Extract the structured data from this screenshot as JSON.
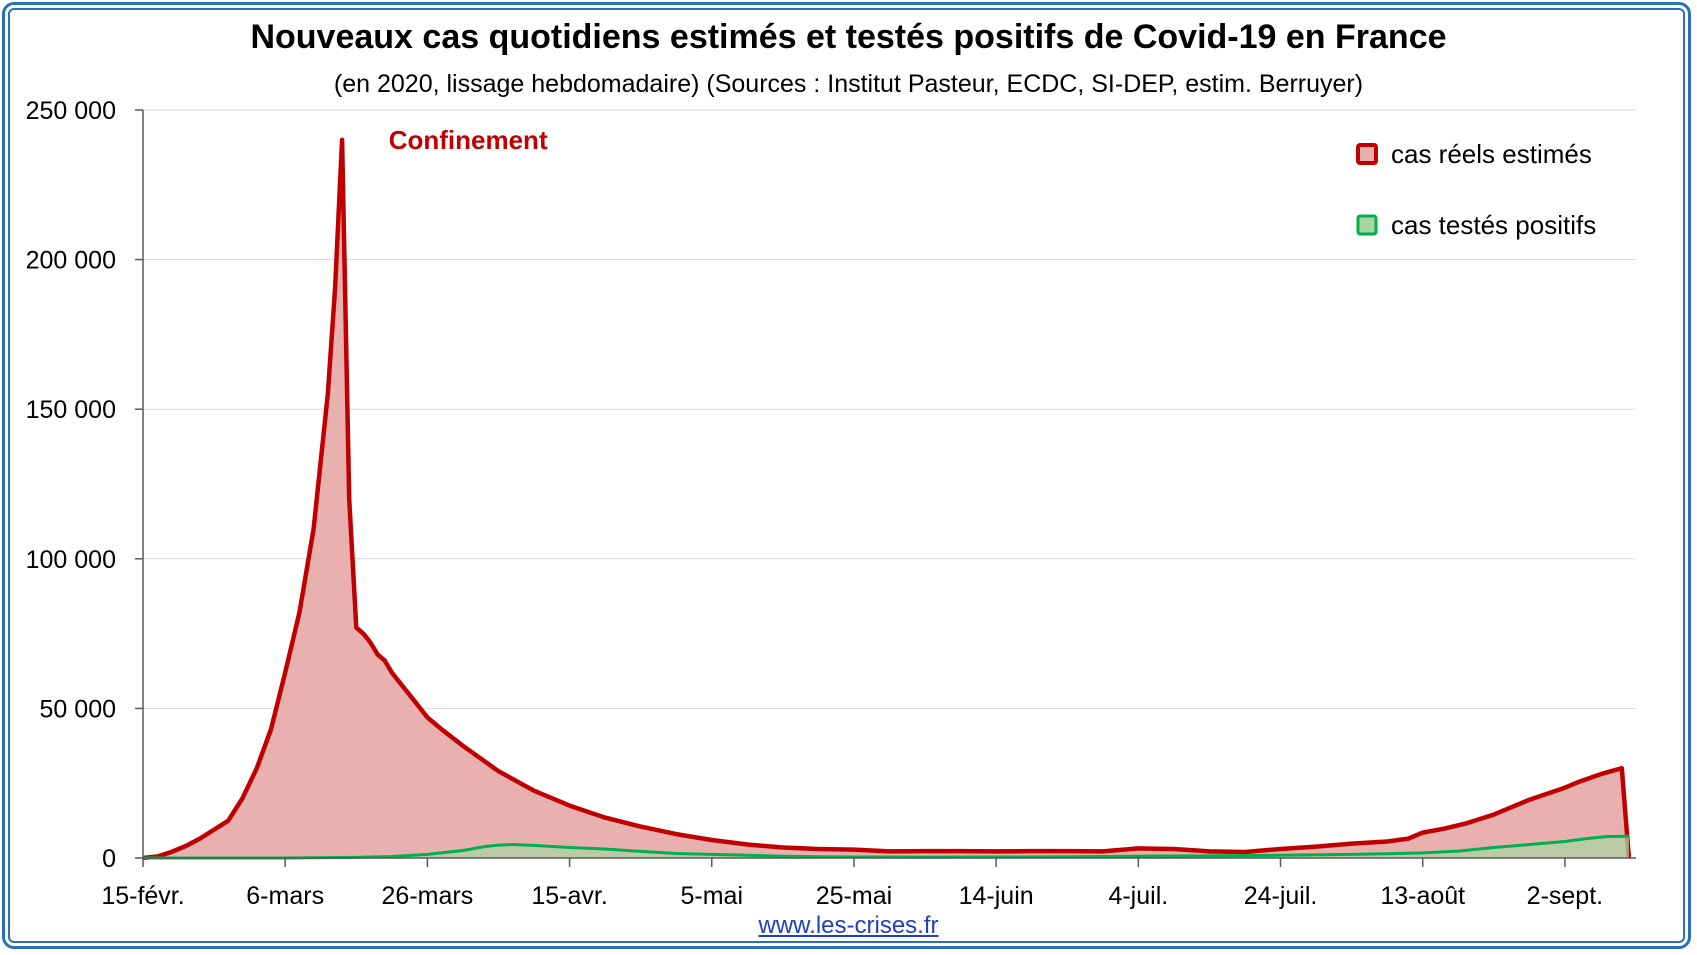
{
  "chart_data": {
    "type": "area",
    "title": "Nouveaux cas quotidiens estimés et testés positifs de Covid-19 en France",
    "subtitle": "(en 2020, lissage hebdomadaire) (Sources : Institut Pasteur, ECDC, SI-DEP, estim. Berruyer)",
    "x_start": "15-févr.",
    "xlabel": "",
    "ylabel": "",
    "ylim": [
      0,
      250000
    ],
    "grid": true,
    "legend_position": "top-right",
    "y_ticks": [
      "0",
      "50 000",
      "100 000",
      "150 000",
      "200 000",
      "250 000"
    ],
    "y_tick_values": [
      0,
      50000,
      100000,
      150000,
      200000,
      250000
    ],
    "x_ticks": [
      "15-févr.",
      "6-mars",
      "26-mars",
      "15-avr.",
      "5-mai",
      "25-mai",
      "14-juin",
      "4-juil.",
      "24-juil.",
      "13-août",
      "2-sept."
    ],
    "x_tick_days": [
      0,
      20,
      40,
      60,
      80,
      100,
      120,
      140,
      160,
      180,
      200
    ],
    "annotation": {
      "text": "Confinement",
      "day": 34,
      "value": 238000
    },
    "series": [
      {
        "name": "cas réels estimés",
        "color": "#c00000",
        "fill": "#e9b0b0",
        "points": [
          [
            0,
            0
          ],
          [
            2,
            500
          ],
          [
            4,
            2000
          ],
          [
            6,
            4000
          ],
          [
            8,
            6500
          ],
          [
            10,
            9500
          ],
          [
            12,
            12500
          ],
          [
            14,
            20000
          ],
          [
            16,
            30000
          ],
          [
            18,
            43000
          ],
          [
            20,
            62000
          ],
          [
            22,
            82000
          ],
          [
            24,
            110000
          ],
          [
            26,
            155000
          ],
          [
            27,
            190000
          ],
          [
            28,
            240000
          ],
          [
            29,
            120000
          ],
          [
            30,
            77000
          ],
          [
            31,
            75000
          ],
          [
            32,
            72000
          ],
          [
            33,
            68000
          ],
          [
            34,
            66000
          ],
          [
            35,
            62000
          ],
          [
            36,
            59000
          ],
          [
            38,
            53000
          ],
          [
            40,
            47000
          ],
          [
            42,
            43000
          ],
          [
            45,
            37500
          ],
          [
            50,
            29000
          ],
          [
            55,
            22500
          ],
          [
            60,
            17500
          ],
          [
            65,
            13500
          ],
          [
            70,
            10500
          ],
          [
            75,
            8000
          ],
          [
            80,
            6000
          ],
          [
            85,
            4500
          ],
          [
            90,
            3500
          ],
          [
            95,
            3000
          ],
          [
            100,
            2800
          ],
          [
            105,
            2200
          ],
          [
            110,
            2300
          ],
          [
            115,
            2300
          ],
          [
            120,
            2200
          ],
          [
            125,
            2300
          ],
          [
            130,
            2300
          ],
          [
            135,
            2200
          ],
          [
            140,
            3200
          ],
          [
            145,
            3000
          ],
          [
            150,
            2200
          ],
          [
            155,
            2000
          ],
          [
            160,
            3000
          ],
          [
            165,
            3800
          ],
          [
            170,
            4800
          ],
          [
            175,
            5500
          ],
          [
            178,
            6500
          ],
          [
            180,
            8500
          ],
          [
            183,
            9800
          ],
          [
            186,
            11500
          ],
          [
            190,
            14500
          ],
          [
            195,
            19500
          ],
          [
            200,
            23500
          ],
          [
            202,
            25500
          ],
          [
            205,
            28000
          ],
          [
            208,
            30000
          ],
          [
            209,
            0
          ]
        ]
      },
      {
        "name": "cas testés positifs",
        "color": "#00b050",
        "fill": "#a9d4a1",
        "points": [
          [
            0,
            0
          ],
          [
            20,
            0
          ],
          [
            30,
            200
          ],
          [
            35,
            500
          ],
          [
            40,
            1200
          ],
          [
            45,
            2500
          ],
          [
            48,
            3800
          ],
          [
            50,
            4300
          ],
          [
            52,
            4500
          ],
          [
            55,
            4200
          ],
          [
            60,
            3500
          ],
          [
            65,
            3000
          ],
          [
            70,
            2200
          ],
          [
            75,
            1500
          ],
          [
            80,
            1200
          ],
          [
            85,
            900
          ],
          [
            90,
            600
          ],
          [
            95,
            400
          ],
          [
            100,
            350
          ],
          [
            110,
            300
          ],
          [
            120,
            350
          ],
          [
            130,
            400
          ],
          [
            140,
            600
          ],
          [
            150,
            700
          ],
          [
            160,
            900
          ],
          [
            170,
            1200
          ],
          [
            175,
            1400
          ],
          [
            180,
            1700
          ],
          [
            185,
            2300
          ],
          [
            190,
            3500
          ],
          [
            195,
            4500
          ],
          [
            200,
            5500
          ],
          [
            203,
            6500
          ],
          [
            206,
            7200
          ],
          [
            209,
            7300
          ]
        ]
      }
    ]
  },
  "source_link": "www.les-crises.fr"
}
